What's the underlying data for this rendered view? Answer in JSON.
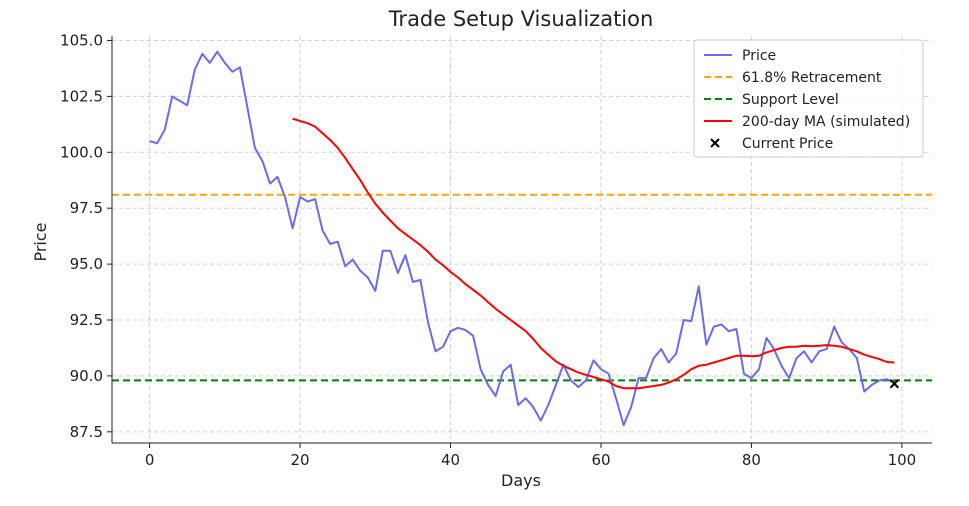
{
  "chart_data": {
    "type": "line",
    "title": "Trade Setup Visualization",
    "xlabel": "Days",
    "ylabel": "Price",
    "xlim": [
      -5,
      104
    ],
    "ylim": [
      87,
      105.2
    ],
    "xticks": [
      0,
      20,
      40,
      60,
      80,
      100
    ],
    "xtick_labels": [
      "0",
      "20",
      "40",
      "60",
      "80",
      "100"
    ],
    "yticks": [
      87.5,
      90.0,
      92.5,
      95.0,
      97.5,
      100.0,
      102.5,
      105.0
    ],
    "ytick_labels": [
      "87.5",
      "90.0",
      "92.5",
      "95.0",
      "97.5",
      "100.0",
      "102.5",
      "105.0"
    ],
    "grid": true,
    "legend_position": "top-right",
    "colors": {
      "price": "#6b6bef",
      "retracement": "#ffa500",
      "support": "#008000",
      "ma": "#ff0000",
      "current": "#000000",
      "grid": "#d0d0d0",
      "axis": "#222222"
    },
    "series": [
      {
        "name": "Price",
        "style": "solid",
        "x": [
          0,
          1,
          2,
          3,
          4,
          5,
          6,
          7,
          8,
          9,
          10,
          11,
          12,
          13,
          14,
          15,
          16,
          17,
          18,
          19,
          20,
          21,
          22,
          23,
          24,
          25,
          26,
          27,
          28,
          29,
          30,
          31,
          32,
          33,
          34,
          35,
          36,
          37,
          38,
          39,
          40,
          41,
          42,
          43,
          44,
          45,
          46,
          47,
          48,
          49,
          50,
          51,
          52,
          53,
          54,
          55,
          56,
          57,
          58,
          59,
          60,
          61,
          62,
          63,
          64,
          65,
          66,
          67,
          68,
          69,
          70,
          71,
          72,
          73,
          74,
          75,
          76,
          77,
          78,
          79,
          80,
          81,
          82,
          83,
          84,
          85,
          86,
          87,
          88,
          89,
          90,
          91,
          92,
          93,
          94,
          95,
          96,
          97,
          98,
          99
        ],
        "values": [
          100.5,
          100.4,
          101.0,
          102.5,
          102.3,
          102.1,
          103.7,
          104.4,
          104.0,
          104.5,
          104.0,
          103.6,
          103.8,
          102.0,
          100.2,
          99.6,
          98.6,
          98.9,
          98.0,
          96.6,
          98.0,
          97.8,
          97.9,
          96.5,
          95.9,
          96.0,
          94.9,
          95.2,
          94.7,
          94.4,
          93.8,
          95.6,
          95.6,
          94.6,
          95.4,
          94.2,
          94.3,
          92.4,
          91.1,
          91.3,
          92.0,
          92.15,
          92.05,
          91.8,
          90.3,
          89.6,
          89.1,
          90.2,
          90.5,
          88.7,
          89.0,
          88.6,
          88.0,
          88.7,
          89.6,
          90.5,
          89.8,
          89.5,
          89.8,
          90.7,
          90.3,
          90.1,
          89.0,
          87.8,
          88.6,
          89.9,
          89.9,
          90.8,
          91.2,
          90.6,
          91.0,
          92.5,
          92.45,
          94.0,
          91.4,
          92.2,
          92.3,
          92.0,
          92.1,
          90.1,
          89.9,
          90.3,
          91.7,
          91.2,
          90.45,
          89.9,
          90.8,
          91.1,
          90.6,
          91.1,
          91.2,
          92.2,
          91.5,
          91.2,
          90.8,
          89.3,
          89.6,
          89.8,
          89.85,
          89.7
        ]
      },
      {
        "name": "61.8% Retracement",
        "style": "dashed",
        "value": 98.1
      },
      {
        "name": "Support Level",
        "style": "dashed",
        "value": 89.8
      },
      {
        "name": "200-day MA (simulated)",
        "style": "solid",
        "x": [
          19,
          20,
          21,
          22,
          23,
          24,
          25,
          26,
          27,
          28,
          29,
          30,
          31,
          32,
          33,
          34,
          35,
          36,
          37,
          38,
          39,
          40,
          41,
          42,
          43,
          44,
          45,
          46,
          47,
          48,
          49,
          50,
          51,
          52,
          53,
          54,
          55,
          56,
          57,
          58,
          59,
          60,
          61,
          62,
          63,
          64,
          65,
          66,
          67,
          68,
          69,
          70,
          71,
          72,
          73,
          74,
          75,
          76,
          77,
          78,
          79,
          80,
          81,
          82,
          83,
          84,
          85,
          86,
          87,
          88,
          89,
          90,
          91,
          92,
          93,
          94,
          95,
          96,
          97,
          98,
          99
        ],
        "values": [
          101.5,
          101.4,
          101.3,
          101.15,
          100.85,
          100.55,
          100.2,
          99.75,
          99.25,
          98.75,
          98.2,
          97.7,
          97.3,
          96.95,
          96.6,
          96.35,
          96.1,
          95.85,
          95.55,
          95.2,
          94.95,
          94.65,
          94.4,
          94.1,
          93.85,
          93.6,
          93.3,
          93.0,
          92.75,
          92.5,
          92.25,
          92.0,
          91.65,
          91.25,
          90.95,
          90.65,
          90.45,
          90.3,
          90.15,
          90.05,
          89.95,
          89.85,
          89.75,
          89.55,
          89.45,
          89.45,
          89.45,
          89.5,
          89.55,
          89.6,
          89.7,
          89.85,
          90.05,
          90.3,
          90.45,
          90.5,
          90.6,
          90.7,
          90.8,
          90.9,
          90.9,
          90.88,
          90.9,
          91.05,
          91.15,
          91.25,
          91.3,
          91.3,
          91.35,
          91.33,
          91.35,
          91.38,
          91.35,
          91.3,
          91.2,
          91.1,
          90.95,
          90.85,
          90.75,
          90.62,
          90.6
        ]
      },
      {
        "name": "Current Price",
        "style": "marker",
        "x": [
          99
        ],
        "values": [
          89.65
        ]
      }
    ]
  }
}
